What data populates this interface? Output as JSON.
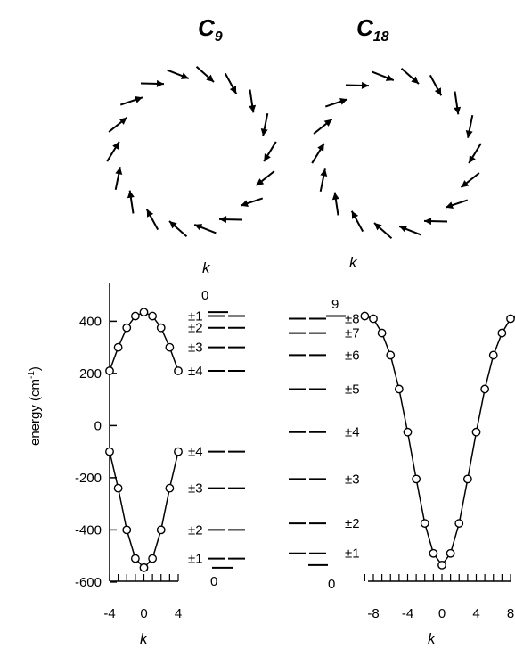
{
  "figure": {
    "panel_left_title": {
      "main": "C",
      "sub": "9"
    },
    "panel_right_title": {
      "main": "C",
      "sub": "18"
    },
    "ylabel": "energy (cm",
    "ylabel_sup": "-1",
    "ylabel_tail": ")",
    "k_label": "k",
    "levels_left_k_top": "0",
    "levels_left_k_bottom": "0",
    "levels_right_k_top": "9",
    "levels_right_k_bottom": "0",
    "levels_left_labels": [
      "±1",
      "±2",
      "±3",
      "±4",
      "±4",
      "±3",
      "±2",
      "±1"
    ],
    "levels_right_labels": [
      "±8",
      "±7",
      "±6",
      "±5",
      "±4",
      "±3",
      "±2",
      "±1"
    ],
    "arrows_left_count": 18,
    "arrows_right_count": 18
  },
  "chart_data": [
    {
      "type": "line",
      "panel": "C9 dispersion",
      "xlabel": "k",
      "ylabel": "energy (cm-1)",
      "xlim": [
        -4,
        4
      ],
      "ylim": [
        -600,
        500
      ],
      "xticks": [
        "-4",
        "0",
        "4"
      ],
      "yticks": [
        "-600",
        "-400",
        "-200",
        "0",
        "200",
        "400"
      ],
      "series": [
        {
          "x": [
            -4,
            -3,
            -2,
            -1,
            0,
            1,
            2,
            3,
            4
          ],
          "values": [
            210,
            300,
            375,
            420,
            435,
            420,
            375,
            300,
            210
          ]
        },
        {
          "x": [
            -4,
            -3,
            -2,
            -1,
            0,
            1,
            2,
            3,
            4
          ],
          "values": [
            -100,
            -240,
            -400,
            -510,
            -545,
            -510,
            -400,
            -240,
            -100
          ]
        }
      ]
    },
    {
      "type": "line",
      "panel": "C18 dispersion",
      "xlabel": "k",
      "xlim": [
        -9,
        9
      ],
      "ylim": [
        -600,
        500
      ],
      "xticks": [
        "-8",
        "-4",
        "0",
        "4",
        "8"
      ],
      "series": [
        {
          "x": [
            -9,
            -8,
            -7,
            -6,
            -5,
            -4,
            -3,
            -2,
            -1,
            0,
            1,
            2,
            3,
            4,
            5,
            6,
            7,
            8,
            9
          ],
          "values": [
            420,
            410,
            355,
            270,
            140,
            -25,
            -205,
            -375,
            -490,
            -535,
            -490,
            -375,
            -205,
            -25,
            140,
            270,
            355,
            410,
            420
          ]
        }
      ]
    },
    {
      "type": "line",
      "panel": "C9 energy levels",
      "ylim": [
        -600,
        500
      ],
      "levels": [
        435,
        420,
        375,
        300,
        210,
        -100,
        -240,
        -400,
        -510,
        -545
      ]
    },
    {
      "type": "line",
      "panel": "C18 energy levels",
      "ylim": [
        -600,
        500
      ],
      "levels": [
        420,
        410,
        355,
        270,
        140,
        -25,
        -205,
        -375,
        -490,
        -535
      ]
    }
  ]
}
